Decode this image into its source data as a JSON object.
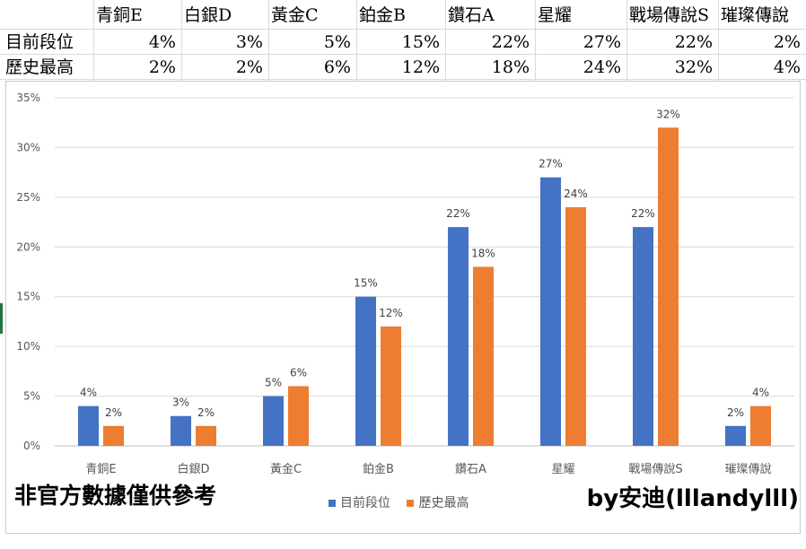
{
  "table": {
    "headers": [
      "青銅E",
      "白銀D",
      "黃金C",
      "鉑金B",
      "鑽石A",
      "星耀",
      "戰場傳說S",
      "璀璨傳說"
    ],
    "rows": [
      {
        "label": "目前段位",
        "values": [
          "4%",
          "3%",
          "5%",
          "15%",
          "22%",
          "27%",
          "22%",
          "2%"
        ]
      },
      {
        "label": "歷史最高",
        "values": [
          "2%",
          "2%",
          "6%",
          "12%",
          "18%",
          "24%",
          "32%",
          "4%"
        ]
      }
    ]
  },
  "chart_data": {
    "type": "bar",
    "categories": [
      "青銅E",
      "白銀D",
      "黃金C",
      "鉑金B",
      "鑽石A",
      "星耀",
      "戰場傳說S",
      "璀璨傳說"
    ],
    "series": [
      {
        "name": "目前段位",
        "values": [
          4,
          3,
          5,
          15,
          22,
          27,
          22,
          2
        ],
        "color": "#4472c4"
      },
      {
        "name": "歷史最高",
        "values": [
          2,
          2,
          6,
          12,
          18,
          24,
          32,
          4
        ],
        "color": "#ed7d31"
      }
    ],
    "value_suffix": "%",
    "ylim": [
      0,
      35
    ],
    "yticks": [
      "0%",
      "5%",
      "10%",
      "15%",
      "20%",
      "25%",
      "30%",
      "35%"
    ],
    "grid": true,
    "legend_position": "bottom",
    "title": "",
    "xlabel": "",
    "ylabel": ""
  },
  "annotations": {
    "left_note": "非官方數據僅供參考",
    "right_note": "by安迪(lllandylll)"
  }
}
